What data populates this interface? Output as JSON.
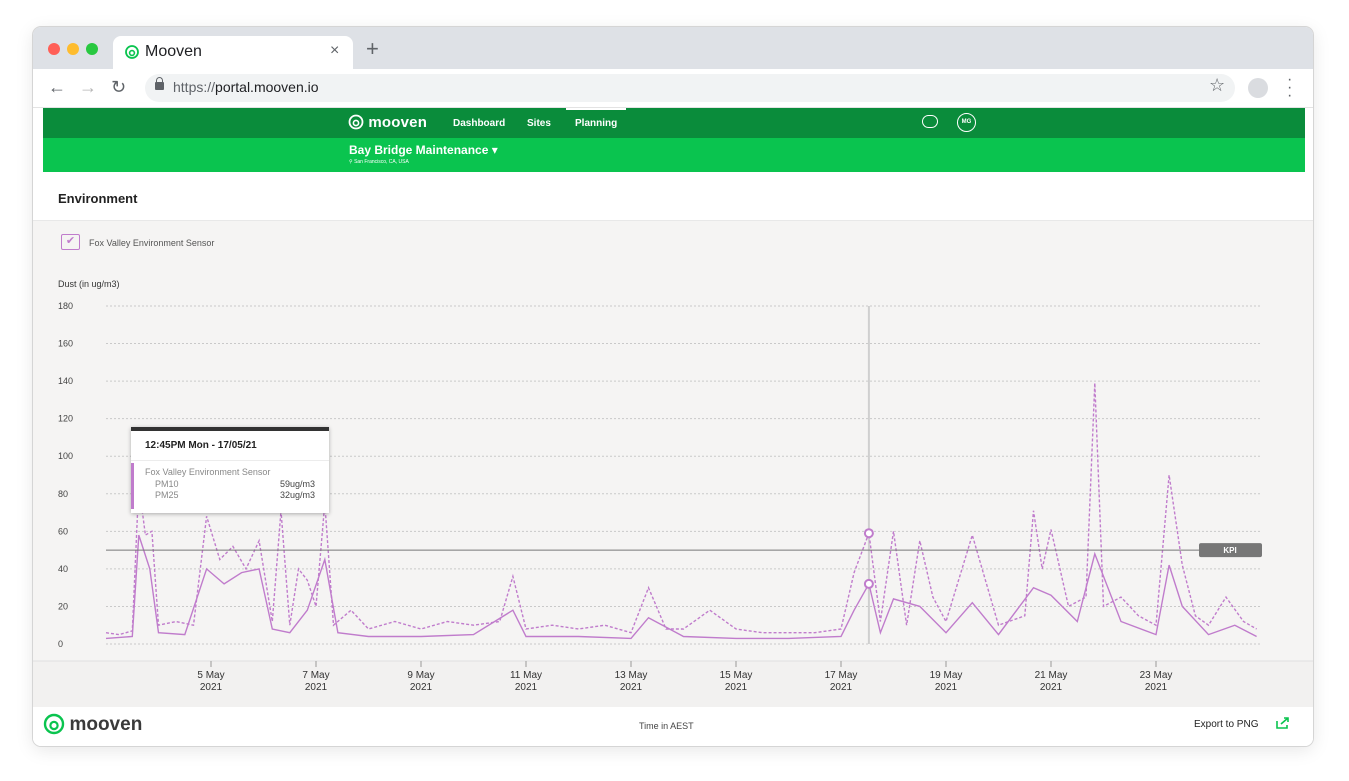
{
  "browser": {
    "tab_title": "Mooven",
    "tab_close": "×",
    "new_tab": "+",
    "url_protocol": "https://",
    "url_host": "portal.mooven.io"
  },
  "app": {
    "brand": "mooven",
    "nav": [
      "Dashboard",
      "Sites",
      "Planning"
    ],
    "active_nav": "Planning",
    "user_initials": "MG",
    "site_name": "Bay Bridge Maintenance",
    "site_location": "San Francisco, CA, USA",
    "section_title": "Environment",
    "legend_label": "Fox Valley Environment Sensor",
    "time_label": "Time in AEST",
    "export_label": "Export to PNG",
    "accent_color": "#c07ccc",
    "header_color": "#0a8c3b",
    "subheader_color": "#0ac44f"
  },
  "tooltip": {
    "title": "12:45PM Mon - 17/05/21",
    "sensor": "Fox Valley Environment Sensor",
    "rows": [
      {
        "label": "PM10",
        "value": "59ug/m3"
      },
      {
        "label": "PM25",
        "value": "32ug/m3"
      }
    ]
  },
  "chart_data": {
    "type": "line",
    "ylabel": "Dust (in ug/m3)",
    "xlabel": "Time in AEST",
    "ylim": [
      0,
      180
    ],
    "yticks": [
      0,
      20,
      40,
      60,
      80,
      100,
      120,
      140,
      160,
      180
    ],
    "x_range": [
      "2021-05-03",
      "2021-05-25"
    ],
    "xticks": [
      {
        "d": "5 May",
        "y": "2021",
        "x": "2021-05-05"
      },
      {
        "d": "7 May",
        "y": "2021",
        "x": "2021-05-07"
      },
      {
        "d": "9 May",
        "y": "2021",
        "x": "2021-05-09"
      },
      {
        "d": "11 May",
        "y": "2021",
        "x": "2021-05-11"
      },
      {
        "d": "13 May",
        "y": "2021",
        "x": "2021-05-13"
      },
      {
        "d": "15 May",
        "y": "2021",
        "x": "2021-05-15"
      },
      {
        "d": "17 May",
        "y": "2021",
        "x": "2021-05-17"
      },
      {
        "d": "19 May",
        "y": "2021",
        "x": "2021-05-19"
      },
      {
        "d": "21 May",
        "y": "2021",
        "x": "2021-05-21"
      },
      {
        "d": "23 May",
        "y": "2021",
        "x": "2021-05-23"
      }
    ],
    "kpi": {
      "label": "KPI",
      "value": 50
    },
    "grid": true,
    "cursor": {
      "x": "2021-05-17T12:45",
      "values": [
        59,
        32
      ]
    },
    "series": [
      {
        "name": "PM10",
        "style": "dashed",
        "color": "#c07ccc",
        "points": [
          [
            "2021-05-03T00:00",
            6
          ],
          [
            "2021-05-03T06:00",
            5
          ],
          [
            "2021-05-03T12:00",
            7
          ],
          [
            "2021-05-03T15:00",
            85
          ],
          [
            "2021-05-03T18:00",
            58
          ],
          [
            "2021-05-03T21:00",
            60
          ],
          [
            "2021-05-04T00:00",
            10
          ],
          [
            "2021-05-04T08:00",
            12
          ],
          [
            "2021-05-04T16:00",
            10
          ],
          [
            "2021-05-04T22:00",
            68
          ],
          [
            "2021-05-05T04:00",
            45
          ],
          [
            "2021-05-05T10:00",
            52
          ],
          [
            "2021-05-05T16:00",
            40
          ],
          [
            "2021-05-05T22:00",
            55
          ],
          [
            "2021-05-06T04:00",
            12
          ],
          [
            "2021-05-06T08:00",
            71
          ],
          [
            "2021-05-06T12:00",
            10
          ],
          [
            "2021-05-06T16:00",
            40
          ],
          [
            "2021-05-06T20:00",
            34
          ],
          [
            "2021-05-07T00:00",
            20
          ],
          [
            "2021-05-07T04:00",
            75
          ],
          [
            "2021-05-07T08:00",
            10
          ],
          [
            "2021-05-07T16:00",
            18
          ],
          [
            "2021-05-08T00:00",
            8
          ],
          [
            "2021-05-08T12:00",
            12
          ],
          [
            "2021-05-09T00:00",
            8
          ],
          [
            "2021-05-09T12:00",
            12
          ],
          [
            "2021-05-10T00:00",
            10
          ],
          [
            "2021-05-10T12:00",
            12
          ],
          [
            "2021-05-10T18:00",
            36
          ],
          [
            "2021-05-11T00:00",
            8
          ],
          [
            "2021-05-11T12:00",
            10
          ],
          [
            "2021-05-12T00:00",
            8
          ],
          [
            "2021-05-12T12:00",
            10
          ],
          [
            "2021-05-13T00:00",
            6
          ],
          [
            "2021-05-13T08:00",
            30
          ],
          [
            "2021-05-13T16:00",
            8
          ],
          [
            "2021-05-14T00:00",
            8
          ],
          [
            "2021-05-14T12:00",
            18
          ],
          [
            "2021-05-15T00:00",
            8
          ],
          [
            "2021-05-15T12:00",
            6
          ],
          [
            "2021-05-16T00:00",
            6
          ],
          [
            "2021-05-16T12:00",
            6
          ],
          [
            "2021-05-17T00:00",
            8
          ],
          [
            "2021-05-17T06:00",
            38
          ],
          [
            "2021-05-17T12:45",
            59
          ],
          [
            "2021-05-17T18:00",
            12
          ],
          [
            "2021-05-18T00:00",
            60
          ],
          [
            "2021-05-18T06:00",
            10
          ],
          [
            "2021-05-18T12:00",
            55
          ],
          [
            "2021-05-18T18:00",
            25
          ],
          [
            "2021-05-19T00:00",
            12
          ],
          [
            "2021-05-19T12:00",
            58
          ],
          [
            "2021-05-20T00:00",
            10
          ],
          [
            "2021-05-20T12:00",
            15
          ],
          [
            "2021-05-20T16:00",
            71
          ],
          [
            "2021-05-20T20:00",
            40
          ],
          [
            "2021-05-21T00:00",
            61
          ],
          [
            "2021-05-21T08:00",
            20
          ],
          [
            "2021-05-21T16:00",
            25
          ],
          [
            "2021-05-21T20:00",
            139
          ],
          [
            "2021-05-22T00:00",
            20
          ],
          [
            "2021-05-22T08:00",
            25
          ],
          [
            "2021-05-22T16:00",
            15
          ],
          [
            "2021-05-23T00:00",
            10
          ],
          [
            "2021-05-23T06:00",
            90
          ],
          [
            "2021-05-23T12:00",
            42
          ],
          [
            "2021-05-23T18:00",
            15
          ],
          [
            "2021-05-24T00:00",
            10
          ],
          [
            "2021-05-24T08:00",
            25
          ],
          [
            "2021-05-24T16:00",
            12
          ],
          [
            "2021-05-24T22:00",
            8
          ]
        ]
      },
      {
        "name": "PM25",
        "style": "solid",
        "color": "#c07ccc",
        "points": [
          [
            "2021-05-03T00:00",
            3
          ],
          [
            "2021-05-03T12:00",
            4
          ],
          [
            "2021-05-03T15:00",
            58
          ],
          [
            "2021-05-03T20:00",
            40
          ],
          [
            "2021-05-04T00:00",
            6
          ],
          [
            "2021-05-04T12:00",
            5
          ],
          [
            "2021-05-04T22:00",
            40
          ],
          [
            "2021-05-05T06:00",
            32
          ],
          [
            "2021-05-05T14:00",
            38
          ],
          [
            "2021-05-05T22:00",
            40
          ],
          [
            "2021-05-06T04:00",
            8
          ],
          [
            "2021-05-06T12:00",
            6
          ],
          [
            "2021-05-06T20:00",
            18
          ],
          [
            "2021-05-07T04:00",
            45
          ],
          [
            "2021-05-07T10:00",
            6
          ],
          [
            "2021-05-08T00:00",
            4
          ],
          [
            "2021-05-09T00:00",
            4
          ],
          [
            "2021-05-10T00:00",
            5
          ],
          [
            "2021-05-10T18:00",
            18
          ],
          [
            "2021-05-11T00:00",
            4
          ],
          [
            "2021-05-12T00:00",
            4
          ],
          [
            "2021-05-13T00:00",
            3
          ],
          [
            "2021-05-13T08:00",
            14
          ],
          [
            "2021-05-14T00:00",
            4
          ],
          [
            "2021-05-15T00:00",
            3
          ],
          [
            "2021-05-16T00:00",
            3
          ],
          [
            "2021-05-17T00:00",
            4
          ],
          [
            "2021-05-17T06:00",
            18
          ],
          [
            "2021-05-17T12:45",
            32
          ],
          [
            "2021-05-17T18:00",
            6
          ],
          [
            "2021-05-18T00:00",
            24
          ],
          [
            "2021-05-18T12:00",
            20
          ],
          [
            "2021-05-19T00:00",
            6
          ],
          [
            "2021-05-19T12:00",
            22
          ],
          [
            "2021-05-20T00:00",
            5
          ],
          [
            "2021-05-20T16:00",
            30
          ],
          [
            "2021-05-21T00:00",
            26
          ],
          [
            "2021-05-21T12:00",
            12
          ],
          [
            "2021-05-21T20:00",
            48
          ],
          [
            "2021-05-22T08:00",
            12
          ],
          [
            "2021-05-23T00:00",
            5
          ],
          [
            "2021-05-23T06:00",
            42
          ],
          [
            "2021-05-23T12:00",
            20
          ],
          [
            "2021-05-24T00:00",
            5
          ],
          [
            "2021-05-24T12:00",
            10
          ],
          [
            "2021-05-24T22:00",
            4
          ]
        ]
      }
    ]
  }
}
